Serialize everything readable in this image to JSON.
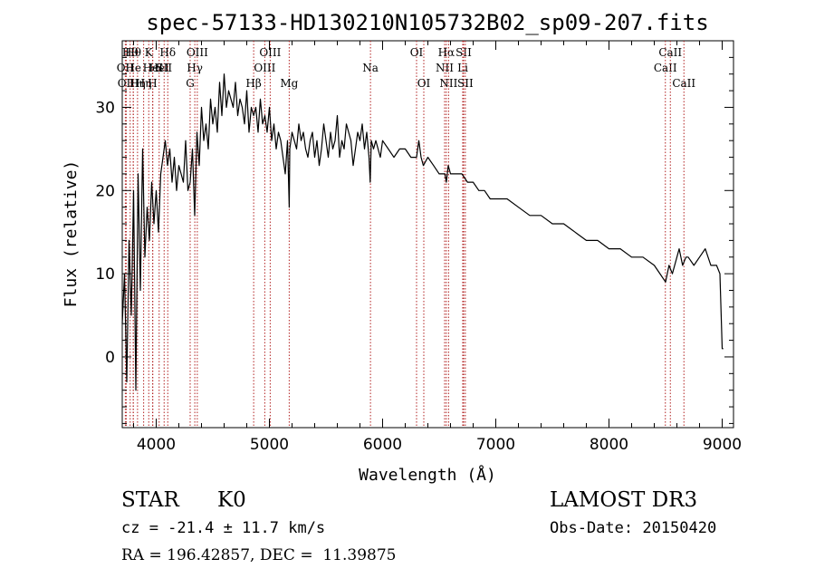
{
  "chart_data": {
    "type": "line",
    "title": "spec-57133-HD130210N105732B02_sp09-207.fits",
    "xlabel": "Wavelength (Å)",
    "ylabel": "Flux (relative)",
    "xlim": [
      3700,
      9100
    ],
    "ylim": [
      -8.5,
      38
    ],
    "x_ticks": [
      4000,
      5000,
      6000,
      7000,
      8000,
      9000
    ],
    "y_ticks": [
      0,
      10,
      20,
      30
    ],
    "line_color": "#000000",
    "marker_color": "#b22222",
    "series": [
      {
        "name": "spectrum",
        "x": [
          3700,
          3720,
          3740,
          3760,
          3780,
          3800,
          3820,
          3840,
          3860,
          3880,
          3900,
          3920,
          3940,
          3960,
          3980,
          4000,
          4020,
          4040,
          4060,
          4080,
          4100,
          4120,
          4140,
          4160,
          4180,
          4200,
          4220,
          4240,
          4260,
          4280,
          4300,
          4320,
          4340,
          4360,
          4380,
          4400,
          4420,
          4440,
          4460,
          4480,
          4500,
          4520,
          4540,
          4560,
          4580,
          4600,
          4620,
          4640,
          4660,
          4680,
          4700,
          4720,
          4740,
          4760,
          4780,
          4800,
          4820,
          4840,
          4861,
          4880,
          4900,
          4920,
          4940,
          4960,
          4980,
          5000,
          5020,
          5040,
          5060,
          5080,
          5100,
          5120,
          5140,
          5160,
          5175,
          5180,
          5200,
          5220,
          5240,
          5260,
          5280,
          5300,
          5320,
          5340,
          5360,
          5380,
          5400,
          5420,
          5440,
          5460,
          5480,
          5500,
          5520,
          5540,
          5560,
          5580,
          5600,
          5620,
          5640,
          5660,
          5680,
          5700,
          5720,
          5740,
          5760,
          5780,
          5800,
          5820,
          5840,
          5860,
          5880,
          5890,
          5900,
          5920,
          5940,
          5960,
          5980,
          6000,
          6050,
          6100,
          6150,
          6200,
          6250,
          6300,
          6320,
          6340,
          6360,
          6400,
          6450,
          6500,
          6550,
          6563,
          6580,
          6600,
          6650,
          6700,
          6750,
          6800,
          6850,
          6900,
          6950,
          7000,
          7100,
          7200,
          7300,
          7400,
          7500,
          7600,
          7700,
          7800,
          7900,
          8000,
          8100,
          8200,
          8300,
          8400,
          8450,
          8500,
          8530,
          8560,
          8600,
          8620,
          8650,
          8680,
          8700,
          8750,
          8800,
          8850,
          8900,
          8950,
          8980,
          9000,
          9010
        ],
        "y": [
          4,
          10,
          -3,
          14,
          5,
          20,
          -4,
          22,
          8,
          25,
          12,
          18,
          14,
          21,
          16,
          20,
          15,
          22,
          24,
          26,
          23,
          25,
          21,
          24,
          20,
          23,
          22,
          21,
          26,
          20,
          21,
          25,
          17,
          27,
          23,
          30,
          26,
          28,
          25,
          31,
          28,
          30,
          27,
          33,
          29,
          34,
          30,
          32,
          31,
          30,
          33,
          29,
          31,
          30,
          28,
          32,
          27,
          30,
          29,
          30,
          27,
          31,
          28,
          29,
          27,
          30,
          26,
          28,
          25,
          27,
          26,
          24,
          22,
          26,
          18,
          25,
          27,
          26,
          25,
          28,
          26,
          27,
          25,
          24,
          26,
          27,
          24,
          26,
          23,
          25,
          28,
          26,
          24,
          27,
          25,
          26,
          29,
          24,
          26,
          25,
          28,
          27,
          26,
          23,
          25,
          27,
          26,
          28,
          25,
          27,
          24,
          21,
          26,
          25,
          26,
          25,
          24,
          26,
          25,
          24,
          25,
          25,
          24,
          24,
          26,
          24,
          23,
          24,
          23,
          22,
          22,
          21,
          23,
          22,
          22,
          22,
          21,
          21,
          20,
          20,
          19,
          19,
          19,
          18,
          17,
          17,
          16,
          16,
          15,
          14,
          14,
          13,
          13,
          12,
          12,
          11,
          10,
          9,
          11,
          10,
          12,
          13,
          11,
          12,
          12,
          11,
          12,
          13,
          11,
          11,
          10,
          1,
          1
        ]
      }
    ],
    "spectral_lines": [
      {
        "wl": 3727,
        "label": "OII",
        "row": 2
      },
      {
        "wl": 3735,
        "label": "OII",
        "row": 3
      },
      {
        "wl": 3770,
        "label": "Hθ",
        "row": 1
      },
      {
        "wl": 3797,
        "label": "Hθ",
        "row": 1
      },
      {
        "wl": 3798,
        "label": "He",
        "row": 2
      },
      {
        "wl": 3835,
        "label": "Hη",
        "row": 3
      },
      {
        "wl": 3889,
        "label": "Hη",
        "row": 3
      },
      {
        "wl": 3934,
        "label": "K",
        "row": 1
      },
      {
        "wl": 3968,
        "label": "H",
        "row": 3
      },
      {
        "wl": 3970,
        "label": "HeI",
        "row": 2
      },
      {
        "wl": 4026,
        "label": "HeI",
        "row": 2
      },
      {
        "wl": 4070,
        "label": "SII",
        "row": 2
      },
      {
        "wl": 4102,
        "label": "Hδ",
        "row": 1
      },
      {
        "wl": 4300,
        "label": "G",
        "row": 3
      },
      {
        "wl": 4341,
        "label": "Hγ",
        "row": 2
      },
      {
        "wl": 4363,
        "label": "OIII",
        "row": 1
      },
      {
        "wl": 4861,
        "label": "Hβ",
        "row": 3
      },
      {
        "wl": 4959,
        "label": "OIII",
        "row": 2
      },
      {
        "wl": 5007,
        "label": "OIII",
        "row": 1
      },
      {
        "wl": 5175,
        "label": "Mg",
        "row": 3
      },
      {
        "wl": 5893,
        "label": "Na",
        "row": 2
      },
      {
        "wl": 6300,
        "label": "OI",
        "row": 1
      },
      {
        "wl": 6364,
        "label": "OI",
        "row": 3
      },
      {
        "wl": 6548,
        "label": "NII",
        "row": 2
      },
      {
        "wl": 6563,
        "label": "Hα",
        "row": 1
      },
      {
        "wl": 6583,
        "label": "NII",
        "row": 3
      },
      {
        "wl": 6708,
        "label": "Li",
        "row": 2
      },
      {
        "wl": 6716,
        "label": "SII",
        "row": 1
      },
      {
        "wl": 6731,
        "label": "SII",
        "row": 3
      },
      {
        "wl": 8498,
        "label": "CaII",
        "row": 2
      },
      {
        "wl": 8542,
        "label": "CaII",
        "row": 1
      },
      {
        "wl": 8662,
        "label": "CaII",
        "row": 3
      }
    ]
  },
  "info": {
    "class_label": "STAR",
    "subclass": "K0",
    "survey": "LAMOST DR3",
    "redshift": "cz = -21.4 ± 11.7 km/s",
    "obs_date": "Obs-Date: 20150420",
    "coords": "RA = 196.42857, DEC =  11.39875"
  }
}
